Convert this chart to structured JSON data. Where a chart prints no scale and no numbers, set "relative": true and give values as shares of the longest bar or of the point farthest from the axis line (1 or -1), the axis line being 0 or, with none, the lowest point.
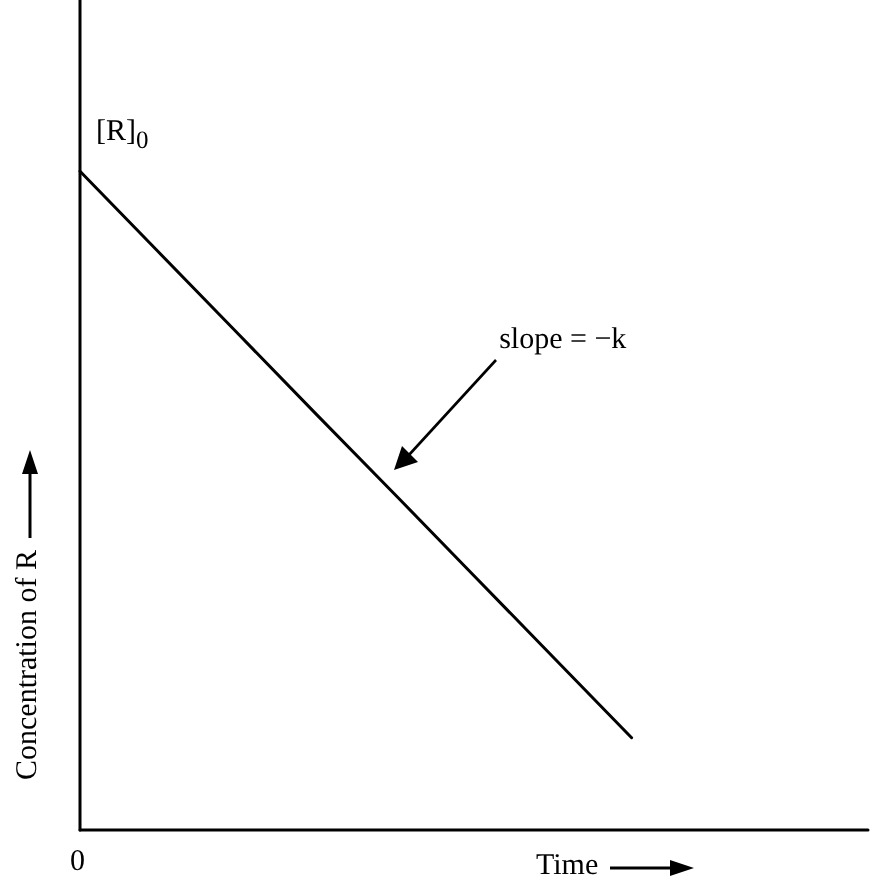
{
  "chart_data": {
    "type": "line",
    "relative": true,
    "categories": [
      null,
      null,
      null,
      null,
      null,
      null,
      null,
      null,
      null,
      null,
      null
    ],
    "series": [
      {
        "color": "#000000",
        "values": [
          1,
          0.877,
          0.754,
          0.631,
          0.509,
          0.386,
          0.263,
          0.14,
          null,
          null,
          null
        ]
      }
    ],
    "xlabel": "Time",
    "ylabel": "Concentration of R",
    "marker": "none",
    "line_style": "solid",
    "annotations": [
      "[R]$_{0}$",
      "slope = −k",
      "0"
    ]
  }
}
